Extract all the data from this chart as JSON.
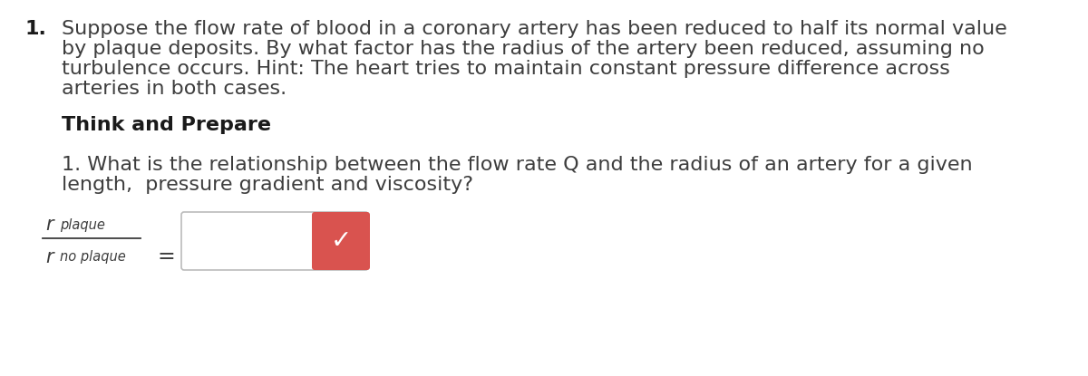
{
  "background_color": "#ffffff",
  "question_number": "1.",
  "question_text_line1": "Suppose the flow rate of blood in a coronary artery has been reduced to half its normal value",
  "question_text_line2": "by plaque deposits. By what factor has the radius of the artery been reduced, assuming no",
  "question_text_line3": "turbulence occurs. Hint: The heart tries to maintain constant pressure difference across",
  "question_text_line4": "arteries in both cases.",
  "section_header": "Think and Prepare",
  "sub_question": "1. What is the relationship between the flow rate Q and the radius of an artery for a given",
  "sub_question_line2": "length,  pressure gradient and viscosity?",
  "text_color": "#3d3d3d",
  "bold_color": "#1a1a1a",
  "check_button_color": "#d9534f",
  "font_size_main": 16.0,
  "font_size_sub": 11.5
}
